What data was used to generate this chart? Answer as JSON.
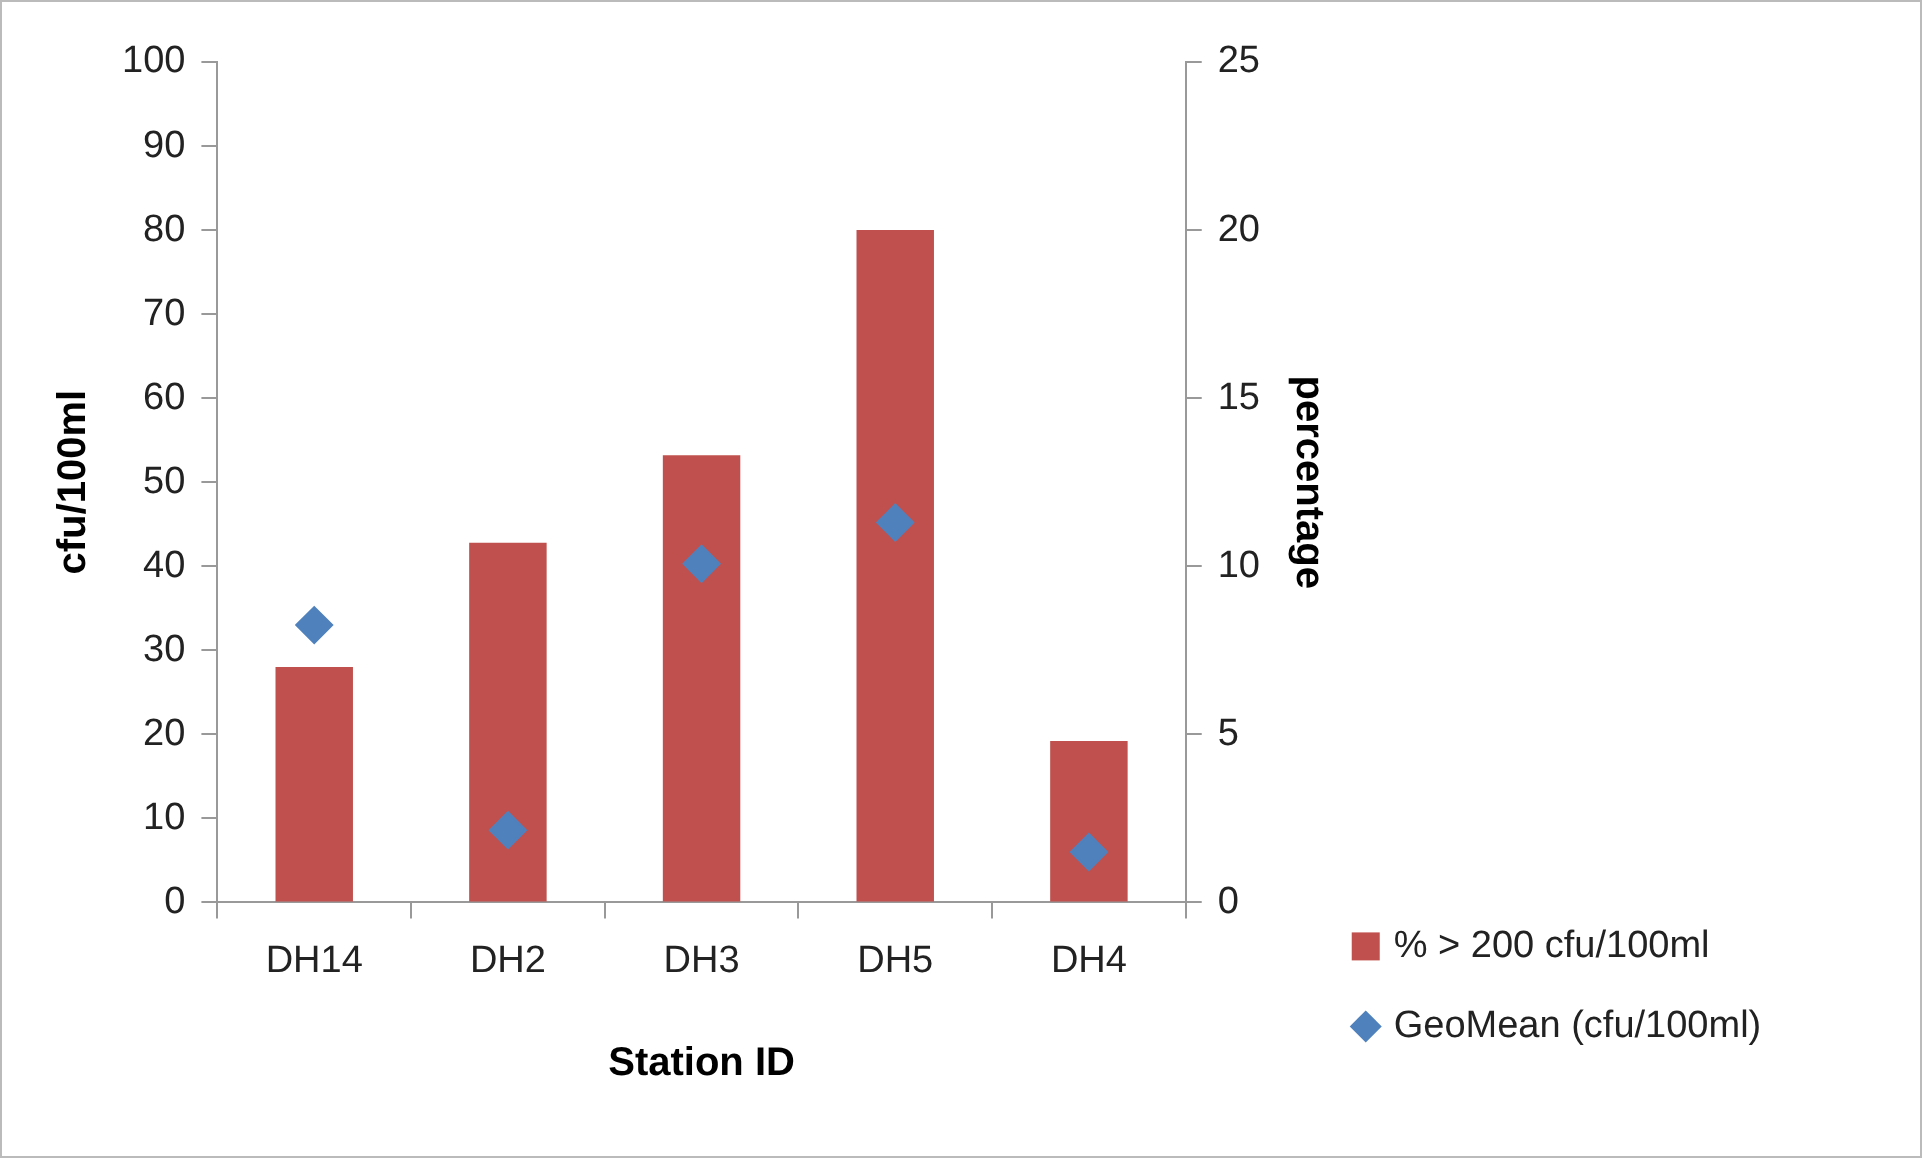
{
  "chart_data": {
    "type": "bar",
    "xlabel": "Station ID",
    "ylabel": "cfu/100ml",
    "y2label": "percentage",
    "categories": [
      "DH14",
      "DH2",
      "DH3",
      "DH5",
      "DH4"
    ],
    "series": [
      {
        "name": "% > 200 cfu/100ml",
        "axis": "y2",
        "color": "#c0504d",
        "values": [
          7.0,
          10.7,
          13.3,
          20.0,
          4.8
        ]
      },
      {
        "name": "GeoMean (cfu/100ml)",
        "type": "scatter",
        "axis": "y",
        "color": "#4f81bd",
        "values": [
          33.0,
          8.6,
          40.3,
          45.2,
          6.0
        ]
      }
    ],
    "ylim": [
      0,
      100
    ],
    "yticks": [
      0,
      10,
      20,
      30,
      40,
      50,
      60,
      70,
      80,
      90,
      100
    ],
    "y2lim": [
      0,
      25
    ],
    "y2ticks": [
      0,
      5,
      10,
      15,
      20,
      25
    ],
    "grid": false,
    "legend": "bottom right",
    "marker": "diamond"
  }
}
